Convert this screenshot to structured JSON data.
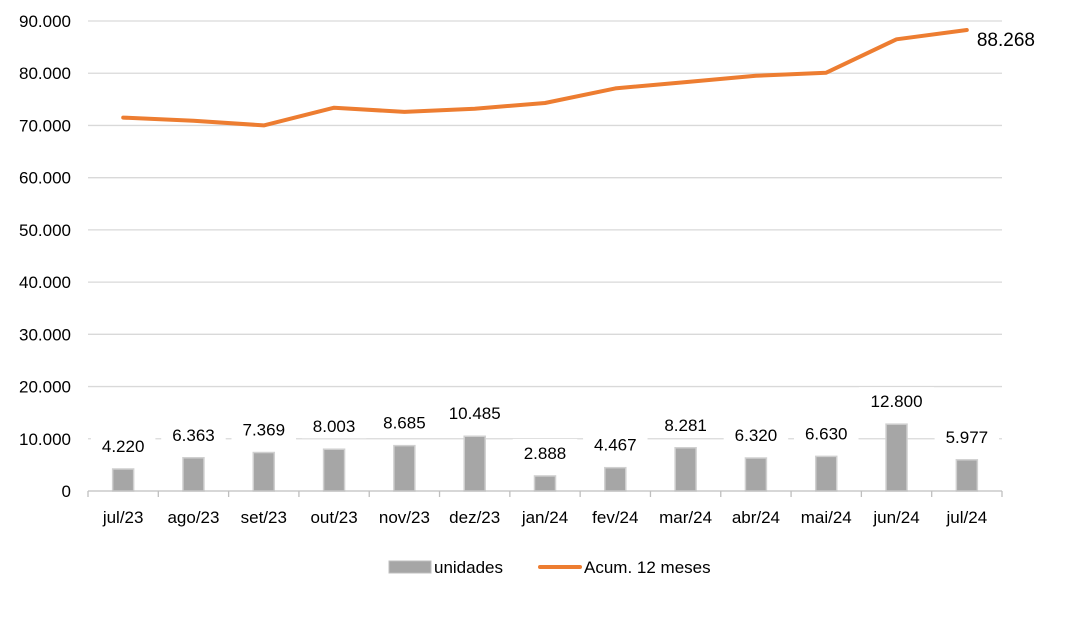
{
  "chart_data": {
    "type": "bar",
    "categories": [
      "jul/23",
      "ago/23",
      "set/23",
      "out/23",
      "nov/23",
      "dez/23",
      "jan/24",
      "fev/24",
      "mar/24",
      "abr/24",
      "mai/24",
      "jun/24",
      "jul/24"
    ],
    "series": [
      {
        "name": "unidades",
        "type": "bar",
        "color": "#a6a6a6",
        "values": [
          4220,
          6363,
          7369,
          8003,
          8685,
          10485,
          2888,
          4467,
          8281,
          6320,
          6630,
          12800,
          5977
        ],
        "labels": [
          "4.220",
          "6.363",
          "7.369",
          "8.003",
          "8.685",
          "10.485",
          "2.888",
          "4.467",
          "8.281",
          "6.320",
          "6.630",
          "12.800",
          "5.977"
        ]
      },
      {
        "name": "Acum. 12 meses",
        "type": "line",
        "color": "#ed7d31",
        "values": [
          71500,
          70900,
          70000,
          73400,
          72600,
          73200,
          74300,
          77100,
          78300,
          79500,
          80100,
          86500,
          88268
        ],
        "last_label": "88.268"
      }
    ],
    "y_ticks": [
      "0",
      "10.000",
      "20.000",
      "30.000",
      "40.000",
      "50.000",
      "60.000",
      "70.000",
      "80.000",
      "90.000"
    ],
    "ylim": [
      0,
      90000
    ],
    "grid": true,
    "legend_position": "bottom"
  }
}
